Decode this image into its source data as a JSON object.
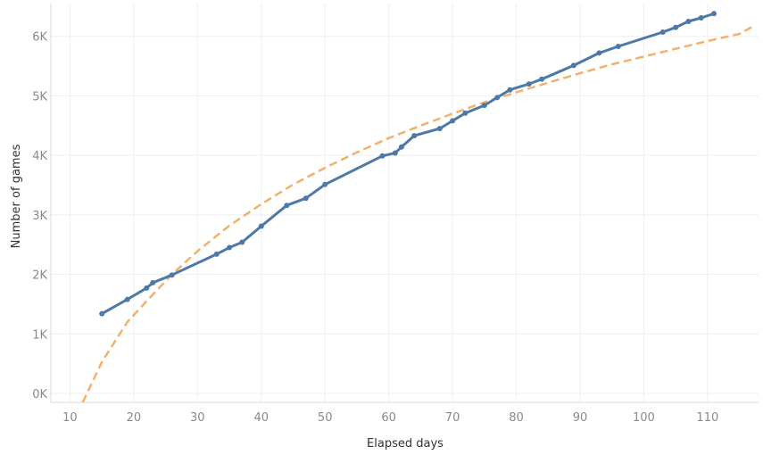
{
  "chart_data": {
    "type": "line",
    "title": "",
    "xlabel": "Elapsed days",
    "ylabel": "Number of games",
    "xlim": [
      7,
      118
    ],
    "ylim": [
      -150,
      6550
    ],
    "x_ticks": [
      10,
      20,
      30,
      40,
      50,
      60,
      70,
      80,
      90,
      100,
      110
    ],
    "x_tick_labels": [
      "10",
      "20",
      "30",
      "40",
      "50",
      "60",
      "70",
      "80",
      "90",
      "100",
      "110"
    ],
    "y_ticks": [
      0,
      1000,
      2000,
      3000,
      4000,
      5000,
      6000
    ],
    "y_tick_labels": [
      "0K",
      "1K",
      "2K",
      "3K",
      "4K",
      "5K",
      "6K"
    ],
    "grid": true,
    "legend": "none",
    "series": [
      {
        "style": "solid-with-markers",
        "color": "#4e79a7",
        "x": [
          15,
          19,
          22,
          23,
          26,
          33,
          35,
          37,
          40,
          44,
          47,
          50,
          59,
          61,
          62,
          64,
          68,
          70,
          72,
          75,
          77,
          79,
          82,
          84,
          89,
          93,
          96,
          103,
          105,
          107,
          109,
          111
        ],
        "y": [
          1340,
          1580,
          1770,
          1860,
          1990,
          2340,
          2450,
          2540,
          2810,
          3160,
          3280,
          3510,
          3990,
          4040,
          4140,
          4330,
          4450,
          4580,
          4710,
          4840,
          4970,
          5100,
          5200,
          5280,
          5510,
          5720,
          5830,
          6070,
          6150,
          6250,
          6310,
          6380
        ]
      },
      {
        "style": "dashed",
        "color": "#f1b26c",
        "x": [
          12,
          15,
          19,
          22,
          26,
          30,
          35,
          40,
          45,
          50,
          55,
          60,
          65,
          70,
          75,
          80,
          85,
          90,
          95,
          100,
          105,
          110,
          115,
          117
        ],
        "y": [
          -150,
          530,
          1200,
          1550,
          2000,
          2390,
          2820,
          3180,
          3510,
          3790,
          4050,
          4290,
          4500,
          4700,
          4890,
          5060,
          5220,
          5380,
          5530,
          5660,
          5790,
          5920,
          6040,
          6160
        ]
      }
    ]
  }
}
